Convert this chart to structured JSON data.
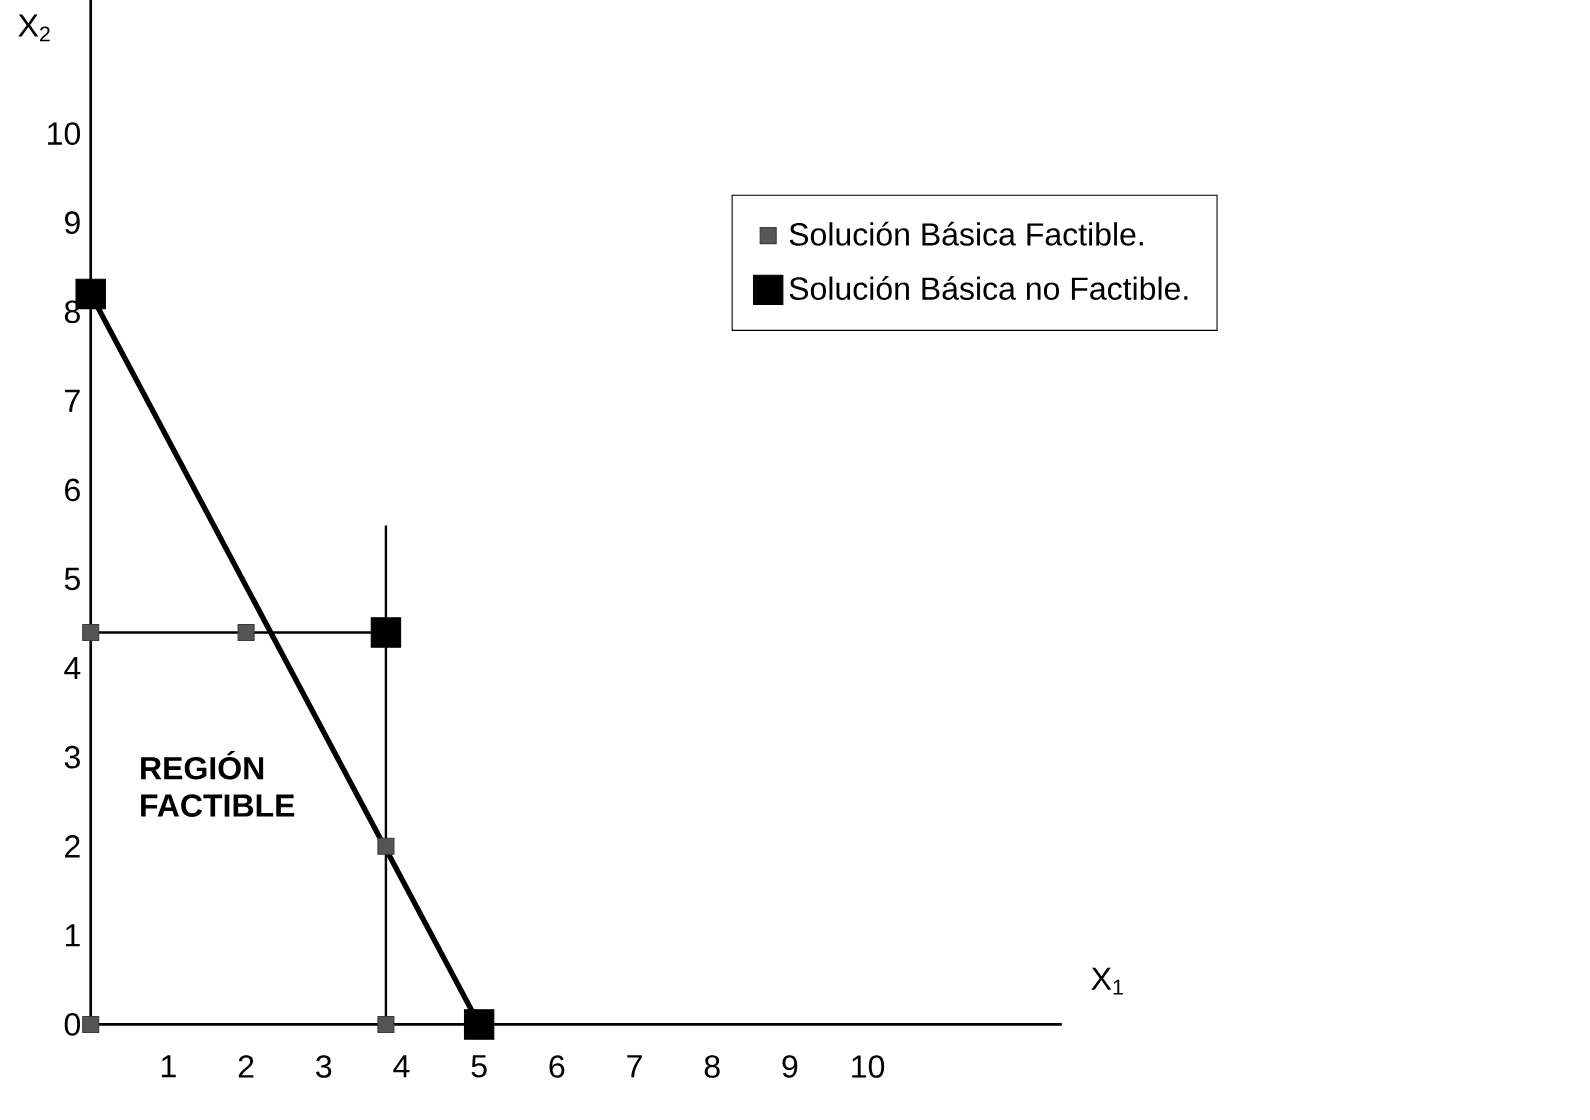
{
  "chart_data": {
    "type": "scatter",
    "xlabel": "X$_{1}$",
    "ylabel": "X$_{2}$",
    "xlim": [
      0,
      12.5
    ],
    "ylim": [
      0,
      11.5
    ],
    "xticks": [
      1,
      2,
      3,
      4,
      5,
      6,
      7,
      8,
      9,
      10
    ],
    "yticks": [
      0,
      1,
      2,
      3,
      4,
      5,
      6,
      7,
      8,
      9,
      10
    ],
    "grid": false,
    "legend": "top right",
    "marker": "square",
    "series": [
      {
        "type": "line",
        "marker": "none",
        "color": "#000000",
        "x": [
          0,
          5
        ],
        "values": [
          8.2,
          0
        ]
      },
      {
        "type": "line",
        "marker": "none",
        "color": "#000000",
        "x": [
          0,
          3.8
        ],
        "values": [
          4.4,
          4.4
        ]
      },
      {
        "type": "line",
        "marker": "none",
        "color": "#000000",
        "x": [
          3.8,
          3.8
        ],
        "values": [
          0,
          5.6
        ]
      },
      {
        "name": "Solución Básica Factible.",
        "color": "#555555",
        "x": [
          0,
          0,
          2,
          3.8,
          3.8
        ],
        "values": [
          0,
          4.4,
          4.4,
          2,
          0
        ]
      },
      {
        "name": "Solución Básica no Factible.",
        "color": "#000000",
        "x": [
          0,
          3.8,
          5
        ],
        "values": [
          8.2,
          4.4,
          0
        ]
      }
    ],
    "annotations": [
      "REGIÓN FACTIBLE"
    ]
  }
}
